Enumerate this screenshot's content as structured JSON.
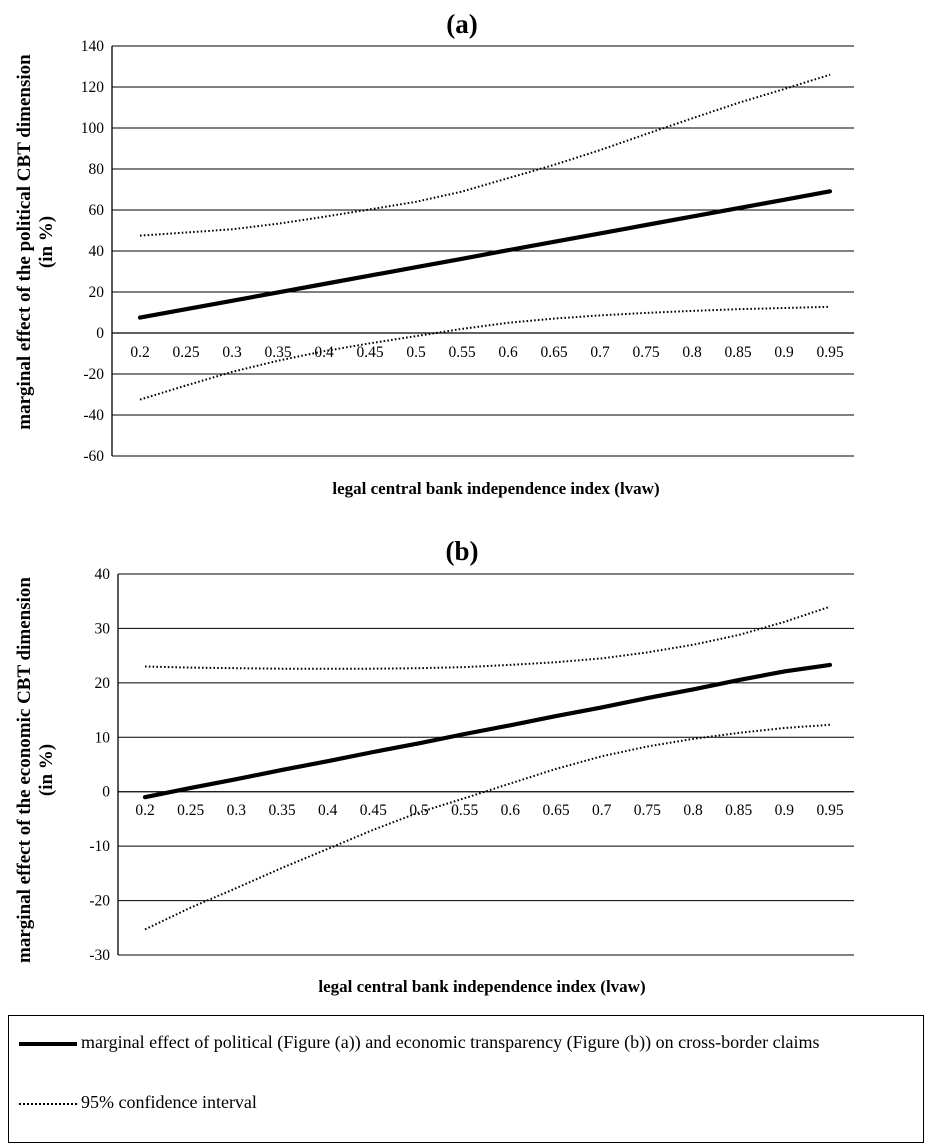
{
  "chart_data": [
    {
      "type": "line",
      "title": "(a)",
      "ylabel": "marginal effect of the political CBT dimension (in %)",
      "xlabel": "legal central bank independence index (lvaw)",
      "ylim": [
        -60,
        140
      ],
      "yticks": [
        "140",
        "120",
        "100",
        "80",
        "60",
        "40",
        "20",
        "0",
        "-20",
        "-40",
        "-60"
      ],
      "categories": [
        "0.2",
        "0.25",
        "0.3",
        "0.35",
        "0.4",
        "0.45",
        "0.5",
        "0.55",
        "0.6",
        "0.65",
        "0.7",
        "0.75",
        "0.8",
        "0.85",
        "0.9",
        "0.95"
      ],
      "grid": true,
      "series": [
        {
          "style": "solid",
          "values": [
            7.5,
            11.6,
            15.7,
            19.8,
            23.9,
            28.0,
            32.1,
            36.2,
            40.4,
            44.5,
            48.6,
            52.7,
            56.8,
            60.9,
            65.0,
            69.1
          ]
        },
        {
          "style": "dotted",
          "values": [
            47.5,
            49.0,
            50.6,
            53.3,
            56.7,
            60.3,
            64.0,
            69.0,
            75.5,
            82.0,
            89.2,
            97.0,
            104.7,
            112.2,
            119.0,
            126.0
          ]
        },
        {
          "style": "dotted",
          "values": [
            -32.5,
            -25.6,
            -19.0,
            -13.5,
            -8.9,
            -5.0,
            -1.5,
            2.0,
            5.0,
            7.0,
            8.6,
            9.8,
            10.8,
            11.6,
            12.2,
            12.8
          ]
        }
      ]
    },
    {
      "type": "line",
      "title": "(b)",
      "ylabel": "marginal effect of the economic CBT dimension (in %)",
      "xlabel": "legal central bank independence index (lvaw)",
      "ylim": [
        -30,
        40
      ],
      "yticks": [
        "40",
        "30",
        "20",
        "10",
        "0",
        "-10",
        "-20",
        "-30"
      ],
      "categories": [
        "0.2",
        "0.25",
        "0.3",
        "0.35",
        "0.4",
        "0.45",
        "0.5",
        "0.55",
        "0.6",
        "0.65",
        "0.7",
        "0.75",
        "0.8",
        "0.85",
        "0.9",
        "0.95"
      ],
      "grid": true,
      "series": [
        {
          "style": "solid",
          "values": [
            -1.0,
            0.7,
            2.3,
            4.0,
            5.6,
            7.3,
            8.9,
            10.6,
            12.2,
            13.9,
            15.5,
            17.2,
            18.8,
            20.5,
            22.1,
            23.3
          ]
        },
        {
          "style": "dotted",
          "values": [
            23.0,
            22.8,
            22.7,
            22.6,
            22.6,
            22.6,
            22.7,
            22.9,
            23.3,
            23.8,
            24.5,
            25.6,
            27.0,
            28.8,
            31.2,
            34.0
          ]
        },
        {
          "style": "dotted",
          "values": [
            -25.3,
            -21.3,
            -17.7,
            -14.0,
            -10.5,
            -7.0,
            -3.8,
            -1.2,
            1.5,
            4.2,
            6.5,
            8.3,
            9.7,
            10.8,
            11.7,
            12.3
          ]
        }
      ]
    }
  ],
  "legend": {
    "solid_label": "marginal effect of political (Figure (a)) and economic transparency (Figure (b)) on cross-border claims",
    "dotted_label": "95% confidence interval"
  }
}
